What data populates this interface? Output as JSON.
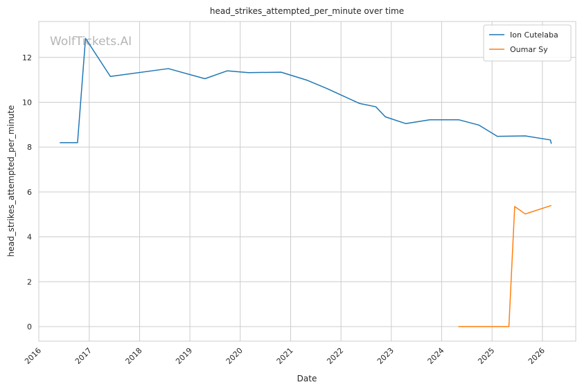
{
  "chart_data": {
    "type": "line",
    "title": "head_strikes_attempted_per_minute over time",
    "xlabel": "Date",
    "ylabel": "head_strikes_attempted_per_minute",
    "watermark": "WolfTickets.AI",
    "x_ticks": [
      "2016",
      "2017",
      "2018",
      "2019",
      "2020",
      "2021",
      "2022",
      "2023",
      "2024",
      "2025",
      "2026"
    ],
    "y_ticks": [
      0,
      2,
      4,
      6,
      8,
      10,
      12
    ],
    "xlim": [
      "2016-01-01",
      "2026-08-31"
    ],
    "ylim": [
      -0.65,
      13.6
    ],
    "grid": true,
    "legend_position": "top-right",
    "series": [
      {
        "name": "Ion Cutelaba",
        "color": "#1f77b4",
        "points": [
          [
            "2016-06-01",
            8.2
          ],
          [
            "2016-10-08",
            8.2
          ],
          [
            "2016-12-05",
            12.85
          ],
          [
            "2017-06-03",
            11.15
          ],
          [
            "2018-07-29",
            11.5
          ],
          [
            "2019-04-20",
            11.05
          ],
          [
            "2019-09-28",
            11.4
          ],
          [
            "2020-02-29",
            11.32
          ],
          [
            "2020-10-24",
            11.34
          ],
          [
            "2021-05-01",
            10.98
          ],
          [
            "2021-09-18",
            10.62
          ],
          [
            "2022-05-14",
            9.95
          ],
          [
            "2022-09-10",
            9.8
          ],
          [
            "2022-11-19",
            9.35
          ],
          [
            "2023-04-15",
            9.05
          ],
          [
            "2023-10-07",
            9.22
          ],
          [
            "2024-05-04",
            9.22
          ],
          [
            "2024-09-28",
            8.98
          ],
          [
            "2025-02-08",
            8.48
          ],
          [
            "2025-08-30",
            8.5
          ],
          [
            "2026-02-28",
            8.32
          ],
          [
            "2026-03-07",
            8.15
          ]
        ]
      },
      {
        "name": "Oumar Sy",
        "color": "#ff7f0e",
        "points": [
          [
            "2024-05-01",
            0.0
          ],
          [
            "2025-05-03",
            0.0
          ],
          [
            "2025-06-14",
            5.35
          ],
          [
            "2025-08-30",
            5.02
          ],
          [
            "2026-03-07",
            5.4
          ]
        ]
      }
    ]
  }
}
